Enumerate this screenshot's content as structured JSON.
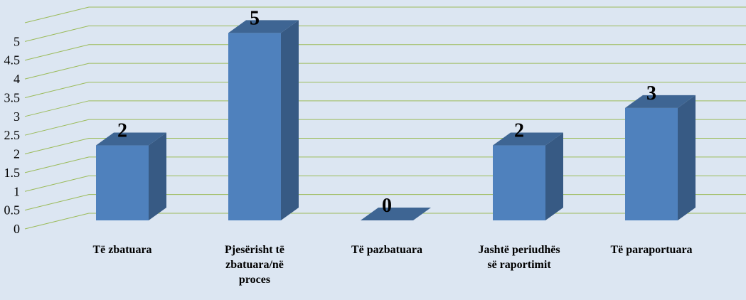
{
  "chart_data": {
    "type": "bar3d",
    "categories": [
      "Të zbatuara",
      "Pjesërisht të zbatuara/në proces",
      "Të pazbatuara",
      "Jashtë periudhës së raportimit",
      "Të paraportuara"
    ],
    "values": [
      2,
      5,
      0,
      2,
      3
    ],
    "color": "#4f81bd",
    "ylim": [
      0,
      5.5
    ],
    "yticks": [
      0,
      0.5,
      1,
      1.5,
      2,
      2.5,
      3,
      3.5,
      4,
      4.5,
      5
    ],
    "grid": true
  }
}
